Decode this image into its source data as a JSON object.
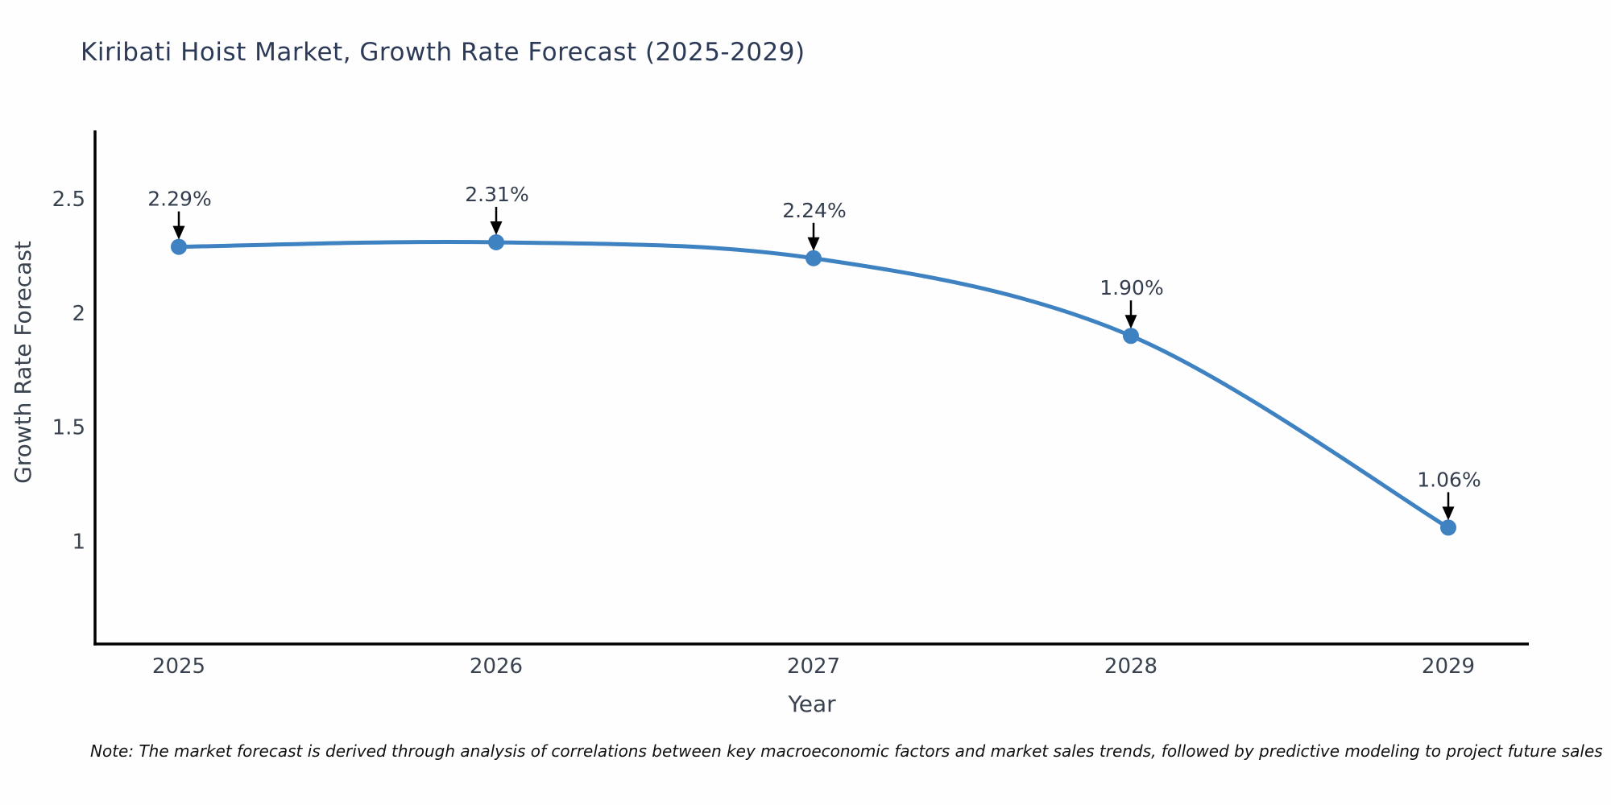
{
  "note": "Note: The market forecast is derived through analysis of correlations between key macroeconomic factors and market sales trends, followed by predictive modeling to project future sales",
  "colors": {
    "title": "#2c3a58",
    "axis_line": "#000000",
    "tick_label": "#39424f",
    "axis_title": "#39424f",
    "annotation_text": "#333d4d",
    "annotation_arrow": "#000000",
    "line": "#3f82c1",
    "marker": "#3f82c1",
    "background": "#fefefe"
  },
  "chart_data": {
    "type": "line",
    "title": "Kiribati Hoist Market, Growth Rate Forecast (2025-2029)",
    "xlabel": "Year",
    "ylabel": "Growth Rate Forecast",
    "x": [
      2025,
      2026,
      2027,
      2028,
      2029
    ],
    "xticks": [
      "2025",
      "2026",
      "2027",
      "2028",
      "2029"
    ],
    "series": [
      {
        "name": "Growth Rate Forecast",
        "values": [
          2.29,
          2.31,
          2.24,
          1.9,
          1.06
        ]
      }
    ],
    "point_labels": [
      "2.29%",
      "2.31%",
      "2.24%",
      "1.90%",
      "1.06%"
    ],
    "yticks": [
      1,
      1.5,
      2,
      2.5
    ],
    "ylim": [
      0.55,
      2.8
    ],
    "grid": false,
    "legend": "none",
    "curve": "spline",
    "annotation_style": "label-above-with-down-arrow"
  }
}
